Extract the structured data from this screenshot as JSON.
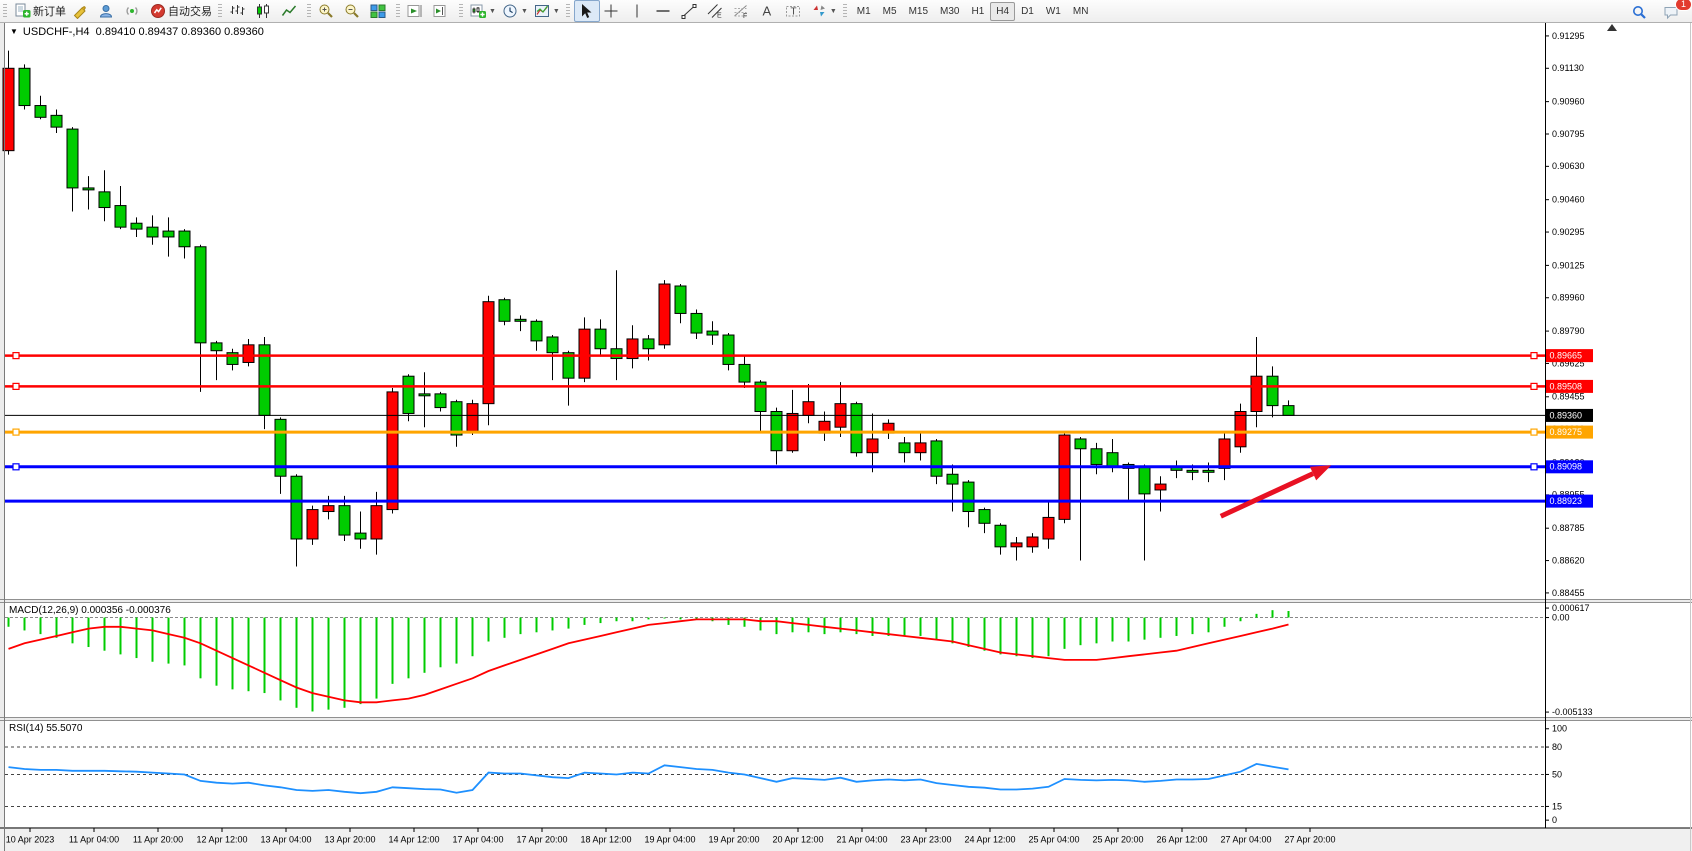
{
  "window": {
    "app": "MetaTrader terminal",
    "bg": "#ececec"
  },
  "toolbar": {
    "groups": [
      [
        {
          "name": "new-order",
          "icon": "new-order",
          "label": "新订单"
        },
        {
          "name": "styler",
          "icon": "crayon"
        },
        {
          "name": "publisher",
          "icon": "publisher"
        },
        {
          "name": "signals",
          "icon": "signals"
        },
        {
          "name": "auto-trading",
          "icon": "autotrading",
          "label": "自动交易"
        }
      ],
      [
        {
          "name": "bar-chart-mode",
          "icon": "bars"
        },
        {
          "name": "candlestick-mode",
          "icon": "candles"
        },
        {
          "name": "line-chart-mode",
          "icon": "linechart"
        }
      ],
      [
        {
          "name": "zoom-in",
          "icon": "zoom-in"
        },
        {
          "name": "zoom-out",
          "icon": "zoom-out"
        },
        {
          "name": "tile-windows",
          "icon": "tiles"
        }
      ],
      [
        {
          "name": "auto-scroll",
          "icon": "autoscroll"
        },
        {
          "name": "chart-shift",
          "icon": "chartshift"
        }
      ],
      [
        {
          "name": "new-chart",
          "icon": "newchart",
          "dropdown": true
        },
        {
          "name": "periods",
          "icon": "clock",
          "dropdown": true
        },
        {
          "name": "templates",
          "icon": "template",
          "dropdown": true
        }
      ],
      [
        {
          "name": "cursor",
          "icon": "cursor",
          "active": true
        },
        {
          "name": "crosshair",
          "icon": "crosshair"
        },
        {
          "name": "vertical-line",
          "icon": "vline"
        },
        {
          "name": "horizontal-line",
          "icon": "hline"
        },
        {
          "name": "trendline",
          "icon": "trendline"
        },
        {
          "name": "equidistant-channel",
          "icon": "channel"
        },
        {
          "name": "fibonacci",
          "icon": "fibo"
        },
        {
          "name": "text",
          "icon": "textA"
        },
        {
          "name": "text-label",
          "icon": "labelT"
        },
        {
          "name": "arrows",
          "icon": "arrows",
          "dropdown": true
        }
      ]
    ],
    "timeframes": [
      "M1",
      "M5",
      "M15",
      "M30",
      "H1",
      "H4",
      "D1",
      "W1",
      "MN"
    ],
    "active_timeframe": "H4",
    "notification_count": "1"
  },
  "chart": {
    "symbol_period": "USDCHF-,H4",
    "ohlc": "0.89410 0.89437 0.89360 0.89360"
  },
  "indicators": {
    "macd": {
      "label": "MACD(12,26,9)",
      "values_text": "0.000356 -0.000376",
      "axis_max": "0.000617",
      "axis_zero": "0.00",
      "axis_min": "-0.005133"
    },
    "rsi": {
      "label": "RSI(14)",
      "value_text": "55.5070",
      "axis_labels": [
        "100",
        "80",
        "50",
        "15",
        "0"
      ]
    }
  },
  "chart_data": [
    {
      "type": "candlestick",
      "title": "USDCHF-,H4",
      "up_color": "#FF0000",
      "down_color": "#00CC00",
      "wick_color": "#000000",
      "ylim": [
        0.88424,
        0.91366
      ],
      "yticks": [
        "0.91295",
        "0.91130",
        "0.90960",
        "0.90795",
        "0.90630",
        "0.90460",
        "0.90295",
        "0.90125",
        "0.89960",
        "0.89790",
        "0.89625",
        "0.89455",
        "0.89290",
        "0.89120",
        "0.88955",
        "0.88785",
        "0.88620",
        "0.88455"
      ],
      "x_labels": [
        "10 Apr 2023",
        "11 Apr 04:00",
        "11 Apr 20:00",
        "12 Apr 12:00",
        "13 Apr 04:00",
        "13 Apr 20:00",
        "14 Apr 12:00",
        "17 Apr 04:00",
        "17 Apr 20:00",
        "18 Apr 12:00",
        "19 Apr 04:00",
        "19 Apr 20:00",
        "20 Apr 12:00",
        "21 Apr 04:00",
        "23 Apr 23:00",
        "24 Apr 12:00",
        "25 Apr 04:00",
        "25 Apr 20:00",
        "26 Apr 12:00",
        "27 Apr 04:00",
        "27 Apr 20:00"
      ],
      "layout": {
        "first_bar_x": 8,
        "bar_step": 16,
        "body_width": 11,
        "label_first_x": 30,
        "label_step": 64
      },
      "ohlc": [
        [
          0.9071,
          0.9122,
          0.9069,
          0.9113
        ],
        [
          0.9113,
          0.9115,
          0.9092,
          0.9094
        ],
        [
          0.9094,
          0.9099,
          0.9087,
          0.9088
        ],
        [
          0.9089,
          0.9092,
          0.908,
          0.9083
        ],
        [
          0.9082,
          0.9083,
          0.904,
          0.9052
        ],
        [
          0.9052,
          0.9058,
          0.9041,
          0.9051
        ],
        [
          0.905,
          0.9061,
          0.9035,
          0.9042
        ],
        [
          0.9043,
          0.9053,
          0.9031,
          0.9032
        ],
        [
          0.9034,
          0.9037,
          0.9027,
          0.9031
        ],
        [
          0.9032,
          0.9038,
          0.9023,
          0.9027
        ],
        [
          0.903,
          0.9037,
          0.9017,
          0.9027
        ],
        [
          0.903,
          0.9031,
          0.9016,
          0.9022
        ],
        [
          0.9022,
          0.9023,
          0.8948,
          0.8973
        ],
        [
          0.8973,
          0.8974,
          0.8954,
          0.8969
        ],
        [
          0.8968,
          0.897,
          0.8959,
          0.8962
        ],
        [
          0.8963,
          0.8975,
          0.8961,
          0.8972
        ],
        [
          0.8972,
          0.8976,
          0.8929,
          0.8936
        ],
        [
          0.8934,
          0.8935,
          0.8896,
          0.8905
        ],
        [
          0.8905,
          0.8906,
          0.8859,
          0.8873
        ],
        [
          0.8873,
          0.889,
          0.887,
          0.8888
        ],
        [
          0.8887,
          0.8895,
          0.8883,
          0.889
        ],
        [
          0.889,
          0.8895,
          0.8872,
          0.8875
        ],
        [
          0.8876,
          0.8887,
          0.8868,
          0.8873
        ],
        [
          0.8873,
          0.8897,
          0.8865,
          0.889
        ],
        [
          0.8888,
          0.895,
          0.8886,
          0.8948
        ],
        [
          0.8956,
          0.8957,
          0.8933,
          0.8937
        ],
        [
          0.8947,
          0.8958,
          0.893,
          0.8946
        ],
        [
          0.8947,
          0.8948,
          0.8938,
          0.894
        ],
        [
          0.8943,
          0.8944,
          0.892,
          0.8926
        ],
        [
          0.8928,
          0.8944,
          0.8926,
          0.8942
        ],
        [
          0.8942,
          0.8997,
          0.8931,
          0.8994
        ],
        [
          0.8995,
          0.8996,
          0.8982,
          0.8984
        ],
        [
          0.8985,
          0.8987,
          0.8979,
          0.8984
        ],
        [
          0.8984,
          0.8985,
          0.8969,
          0.8974
        ],
        [
          0.8976,
          0.8977,
          0.8954,
          0.8968
        ],
        [
          0.8968,
          0.8969,
          0.8941,
          0.8955
        ],
        [
          0.8955,
          0.8986,
          0.8953,
          0.898
        ],
        [
          0.898,
          0.8985,
          0.8966,
          0.897
        ],
        [
          0.897,
          0.901,
          0.8954,
          0.8965
        ],
        [
          0.8965,
          0.8982,
          0.896,
          0.8975
        ],
        [
          0.8975,
          0.8977,
          0.8964,
          0.897
        ],
        [
          0.8972,
          0.9005,
          0.897,
          0.9003
        ],
        [
          0.9002,
          0.9003,
          0.8983,
          0.8988
        ],
        [
          0.8988,
          0.899,
          0.8975,
          0.8978
        ],
        [
          0.8979,
          0.8984,
          0.8972,
          0.8977
        ],
        [
          0.8977,
          0.8978,
          0.8959,
          0.8962
        ],
        [
          0.8962,
          0.8967,
          0.895,
          0.8953
        ],
        [
          0.8953,
          0.8954,
          0.8928,
          0.8938
        ],
        [
          0.8938,
          0.894,
          0.8911,
          0.8918
        ],
        [
          0.8918,
          0.8949,
          0.8917,
          0.8937
        ],
        [
          0.8936,
          0.8952,
          0.8932,
          0.8943
        ],
        [
          0.8927,
          0.8938,
          0.8923,
          0.8933
        ],
        [
          0.893,
          0.8953,
          0.8925,
          0.8942
        ],
        [
          0.8942,
          0.8943,
          0.8915,
          0.8917
        ],
        [
          0.8917,
          0.8937,
          0.8907,
          0.8924
        ],
        [
          0.8927,
          0.8934,
          0.8924,
          0.8932
        ],
        [
          0.8922,
          0.8925,
          0.8912,
          0.8917
        ],
        [
          0.8917,
          0.8927,
          0.8913,
          0.8922
        ],
        [
          0.8923,
          0.8924,
          0.8901,
          0.8905
        ],
        [
          0.8906,
          0.8911,
          0.8887,
          0.8901
        ],
        [
          0.8902,
          0.8903,
          0.8879,
          0.8887
        ],
        [
          0.8888,
          0.8889,
          0.8876,
          0.8881
        ],
        [
          0.888,
          0.8881,
          0.8865,
          0.8869
        ],
        [
          0.8869,
          0.8874,
          0.8862,
          0.8871
        ],
        [
          0.8869,
          0.8876,
          0.8866,
          0.8874
        ],
        [
          0.8873,
          0.8892,
          0.8868,
          0.8884
        ],
        [
          0.8883,
          0.8928,
          0.8881,
          0.8926
        ],
        [
          0.8924,
          0.8925,
          0.8862,
          0.8919
        ],
        [
          0.8919,
          0.8922,
          0.8906,
          0.8911
        ],
        [
          0.8917,
          0.8924,
          0.8907,
          0.891
        ],
        [
          0.8911,
          0.8912,
          0.8893,
          0.8909
        ],
        [
          0.891,
          0.8911,
          0.8862,
          0.8896
        ],
        [
          0.8898,
          0.8905,
          0.8887,
          0.8901
        ],
        [
          0.891,
          0.8913,
          0.8904,
          0.8908
        ],
        [
          0.8908,
          0.8911,
          0.8903,
          0.8907
        ],
        [
          0.8908,
          0.8912,
          0.8902,
          0.8907
        ],
        [
          0.8909,
          0.8928,
          0.8903,
          0.8924
        ],
        [
          0.892,
          0.8942,
          0.8917,
          0.8938
        ],
        [
          0.8938,
          0.8976,
          0.893,
          0.8956
        ],
        [
          0.8956,
          0.8961,
          0.8935,
          0.8941
        ],
        [
          0.8941,
          0.89437,
          0.8936,
          0.8936
        ]
      ],
      "hlines": [
        {
          "price": 0.89665,
          "label": "0.89665",
          "color": "#FF0000",
          "lw": 2.5,
          "handles": true,
          "text_color": "#ffffff"
        },
        {
          "price": 0.89508,
          "label": "0.89508",
          "color": "#FF0000",
          "lw": 2.5,
          "handles": true,
          "text_color": "#ffffff"
        },
        {
          "price": 0.8936,
          "label": "0.89360",
          "color": "#000000",
          "lw": 1,
          "handles": false,
          "text_color": "#ffffff"
        },
        {
          "price": 0.89275,
          "label": "0.89275",
          "color": "#FFA500",
          "lw": 3,
          "handles": true,
          "text_color": "#ffffff"
        },
        {
          "price": 0.89098,
          "label": "0.89098",
          "color": "#0000FF",
          "lw": 3,
          "handles": true,
          "text_color": "#ffffff"
        },
        {
          "price": 0.88923,
          "label": "0.88923",
          "color": "#0000FF",
          "lw": 3,
          "handles": false,
          "text_color": "#ffffff"
        }
      ],
      "arrow_annotation": {
        "from_bar": 75.8,
        "from_price": 0.88846,
        "to_bar": 82.7,
        "to_price": 0.89106,
        "color": "#e81123",
        "width": 5
      }
    },
    {
      "type": "bar",
      "name": "MACD(12,26,9)",
      "current_macd": 0.000356,
      "current_signal": -0.000376,
      "ylim": [
        -0.0054,
        0.00079
      ],
      "bar_color": "#00CC00",
      "signal_color": "#FF0000",
      "histogram": [
        -0.0005,
        -0.0007,
        -0.0009,
        -0.0011,
        -0.0014,
        -0.0016,
        -0.0018,
        -0.002,
        -0.0022,
        -0.0024,
        -0.0025,
        -0.0026,
        -0.0033,
        -0.0037,
        -0.0039,
        -0.004,
        -0.0041,
        -0.0045,
        -0.0049,
        -0.0051,
        -0.005,
        -0.0049,
        -0.0047,
        -0.0044,
        -0.0036,
        -0.0033,
        -0.003,
        -0.0027,
        -0.0025,
        -0.0021,
        -0.0013,
        -0.0011,
        -0.0009,
        -0.0008,
        -0.0007,
        -0.0006,
        -0.0004,
        -0.0003,
        -0.0002,
        -0.0002,
        -0.0001,
        -5e-05,
        -0.0001,
        -0.0001,
        -0.0002,
        -0.0004,
        -0.0005,
        -0.0007,
        -0.0009,
        -0.0008,
        -0.0008,
        -0.0009,
        -0.0008,
        -0.0009,
        -0.001,
        -0.001,
        -0.001,
        -0.001,
        -0.0012,
        -0.0014,
        -0.0016,
        -0.0018,
        -0.002,
        -0.0021,
        -0.0022,
        -0.0021,
        -0.0017,
        -0.0015,
        -0.0014,
        -0.0013,
        -0.0013,
        -0.0012,
        -0.0011,
        -0.001,
        -0.0009,
        -0.0008,
        -0.0005,
        -0.0002,
        0.0002,
        0.0004,
        0.000356
      ],
      "signal": [
        -0.0017,
        -0.0014,
        -0.0012,
        -0.001,
        -0.0008,
        -0.0006,
        -0.0005,
        -0.0005,
        -0.0006,
        -0.0007,
        -0.0009,
        -0.0011,
        -0.0014,
        -0.0018,
        -0.0022,
        -0.0026,
        -0.003,
        -0.0034,
        -0.0038,
        -0.0041,
        -0.0043,
        -0.0045,
        -0.0046,
        -0.0046,
        -0.0045,
        -0.0044,
        -0.0042,
        -0.0039,
        -0.0036,
        -0.0033,
        -0.0029,
        -0.0026,
        -0.0023,
        -0.002,
        -0.0017,
        -0.0014,
        -0.0012,
        -0.001,
        -0.0008,
        -0.0006,
        -0.0004,
        -0.0003,
        -0.0002,
        -0.0001,
        -0.0001,
        -0.0001,
        -0.0001,
        -0.0002,
        -0.0002,
        -0.0003,
        -0.0004,
        -0.0005,
        -0.0006,
        -0.0007,
        -0.0008,
        -0.0009,
        -0.001,
        -0.0011,
        -0.0012,
        -0.0013,
        -0.0015,
        -0.0017,
        -0.0019,
        -0.002,
        -0.0021,
        -0.0022,
        -0.0023,
        -0.0023,
        -0.0023,
        -0.0022,
        -0.0021,
        -0.002,
        -0.0019,
        -0.0018,
        -0.0016,
        -0.0014,
        -0.0012,
        -0.001,
        -0.0008,
        -0.0006,
        -0.000376
      ]
    },
    {
      "type": "line",
      "name": "RSI(14)",
      "current": 55.507,
      "ylim": [
        -7.5,
        108.5
      ],
      "levels": [
        80,
        50,
        15
      ],
      "line_color": "#1E90FF",
      "values": [
        58,
        56,
        55,
        55,
        54,
        54,
        54,
        53.5,
        53,
        52,
        51,
        50,
        43,
        41,
        40,
        41,
        38,
        36,
        33,
        32,
        33,
        31,
        29.5,
        31,
        36,
        35,
        34,
        33.5,
        30,
        33,
        52,
        51,
        51,
        49,
        47,
        46,
        52,
        51,
        50,
        52,
        51,
        60,
        58,
        56,
        55,
        52,
        50,
        46,
        42,
        46,
        45,
        44,
        46.5,
        42,
        43.5,
        44.5,
        43.5,
        44.5,
        40.5,
        38.5,
        36.5,
        35.5,
        33.5,
        33.5,
        34.5,
        36.5,
        45,
        44,
        43.5,
        44,
        43.5,
        42,
        43,
        44.5,
        44.5,
        45,
        49,
        53,
        61.5,
        58.5,
        55.5
      ]
    }
  ]
}
